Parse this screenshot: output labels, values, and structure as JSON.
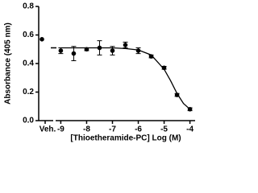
{
  "chart_data": {
    "type": "scatter",
    "x_label": "[Thioetheramide-PC] Log (M)",
    "y_label": "Absorbance (405 nm)",
    "veh": {
      "label": "Veh.",
      "value": 0.57
    },
    "x": [
      -9,
      -8.5,
      -8,
      -7.5,
      -7,
      -6.5,
      -6,
      -5.5,
      -5,
      -4.5,
      -4
    ],
    "values": [
      0.49,
      0.47,
      0.5,
      0.51,
      0.49,
      0.53,
      0.49,
      0.45,
      0.37,
      0.18,
      0.08
    ],
    "errors": [
      0.02,
      0.05,
      0.01,
      0.05,
      0.03,
      0.02,
      0.02,
      0.01,
      0.01,
      0.01,
      0.01
    ],
    "curve": {
      "x": [
        -9,
        -8.5,
        -8,
        -7.5,
        -7,
        -6.5,
        -6,
        -5.5,
        -5,
        -4.75,
        -4.5,
        -4.25,
        -4
      ],
      "values": [
        0.51,
        0.51,
        0.51,
        0.51,
        0.51,
        0.505,
        0.495,
        0.46,
        0.36,
        0.28,
        0.19,
        0.12,
        0.08
      ]
    },
    "color": "#000000",
    "xlim": [
      -9.2,
      -3.8
    ],
    "xticks": [
      -9,
      -8,
      -7,
      -6,
      -5,
      -4
    ],
    "ylim": [
      0,
      0.8
    ],
    "yticks": [
      {
        "value": 0,
        "label": "0.0"
      },
      {
        "value": 0.2,
        "label": "0.2"
      },
      {
        "value": 0.4,
        "label": "0.4"
      },
      {
        "value": 0.6,
        "label": "0.6"
      },
      {
        "value": 0.8,
        "label": "0.8"
      }
    ]
  }
}
